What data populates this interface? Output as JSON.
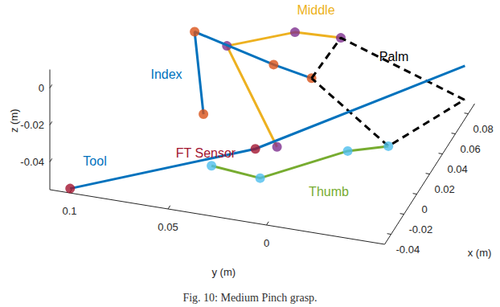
{
  "chart_data": {
    "type": "line3d",
    "caption": "Fig. 10: Medium Pinch grasp.",
    "xlabel": "x (m)",
    "ylabel": "y (m)",
    "zlabel": "z (m)",
    "xlim": [
      -0.05,
      0.09
    ],
    "ylim": [
      -0.06,
      0.11
    ],
    "zlim": [
      -0.055,
      0.01
    ],
    "xticks": [
      -0.04,
      -0.02,
      0,
      0.02,
      0.04,
      0.06,
      0.08
    ],
    "yticks": [
      0,
      0.05,
      0.1
    ],
    "zticks": [
      -0.04,
      -0.02,
      0
    ],
    "grid": false,
    "series": [
      {
        "name": "Middle",
        "color": "#edb120",
        "marker": "circle",
        "line_style": "solid",
        "colors": [
          "#7e2f8e",
          "#7e2f8e",
          "#7e2f8e",
          "#7e2f8e"
        ],
        "x": [
          -0.003,
          0.014,
          0.028,
          0.038
        ],
        "y": [
          0.01,
          0.041,
          0.011,
          -0.009
        ],
        "z": [
          -0.04,
          0,
          0.005,
          0
        ]
      },
      {
        "name": "Index",
        "color": "#0072bd",
        "marker": "circle",
        "line_style": "solid",
        "colors": [
          "#d95319",
          "#d95319",
          "#d95319",
          "#d95319"
        ],
        "x": [
          -0.001,
          0.022,
          0.004,
          0.014
        ],
        "y": [
          0.048,
          0.06,
          0.014,
          -0.002
        ],
        "z": [
          -0.03,
          0,
          0,
          -0.01
        ]
      },
      {
        "name": "Palm",
        "color": "#000000",
        "marker": "none",
        "line_style": "dashed",
        "x": [
          0.014,
          0.038,
          0.077,
          0.014,
          0.014
        ],
        "y": [
          -0.002,
          -0.009,
          -0.059,
          -0.041,
          -0.002
        ],
        "z": [
          -0.01,
          0,
          -0.046,
          -0.04,
          -0.01
        ]
      },
      {
        "name": "Thumb",
        "color": "#77ac30",
        "marker": "circle",
        "line_style": "solid",
        "colors": [
          "#4dbeee",
          "#4dbeee",
          "#4dbeee",
          "#4dbeee"
        ],
        "x": [
          -0.013,
          -0.017,
          0.012,
          0.014
        ],
        "y": [
          0.04,
          0.014,
          -0.021,
          -0.041
        ],
        "z": [
          -0.05,
          -0.05,
          -0.045,
          -0.04
        ]
      },
      {
        "name": "Tool",
        "color": "#0072bd",
        "marker": "none",
        "line_style": "solid",
        "x": [
          -0.046,
          -0.003,
          0.081
        ],
        "y": [
          0.101,
          0.021,
          -0.058
        ],
        "z": [
          -0.055,
          -0.043,
          -0.03
        ]
      },
      {
        "name": "FT Sensor",
        "color": "#a2142f",
        "marker": "circle",
        "line_style": "none",
        "x": [
          -0.046,
          -0.003
        ],
        "y": [
          0.101,
          0.021
        ],
        "z": [
          -0.055,
          -0.043
        ]
      }
    ]
  }
}
